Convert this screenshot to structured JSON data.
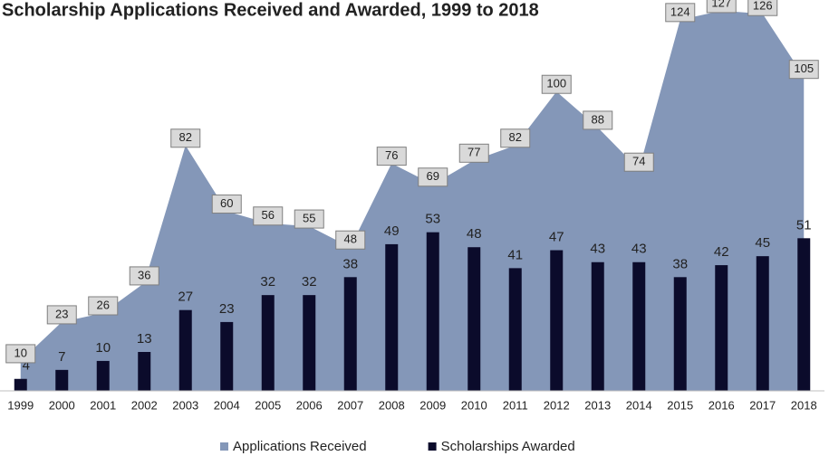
{
  "chart_data": {
    "type": "combo",
    "title": "Scholarship Applications Received and Awarded, 1999 to 2018",
    "categories": [
      "1999",
      "2000",
      "2001",
      "2002",
      "2003",
      "2004",
      "2005",
      "2006",
      "2007",
      "2008",
      "2009",
      "2010",
      "2011",
      "2012",
      "2013",
      "2014",
      "2015",
      "2016",
      "2017",
      "2018"
    ],
    "series": [
      {
        "name": "Applications Received",
        "type": "area",
        "color": "#8497b8",
        "values": [
          10,
          23,
          26,
          36,
          82,
          60,
          56,
          55,
          48,
          76,
          69,
          77,
          82,
          100,
          88,
          74,
          124,
          127,
          126,
          105
        ]
      },
      {
        "name": "Scholarships Awarded",
        "type": "bar",
        "color": "#0b0b2b",
        "values": [
          4,
          7,
          10,
          13,
          27,
          23,
          32,
          32,
          38,
          49,
          53,
          48,
          41,
          47,
          43,
          43,
          38,
          42,
          45,
          51
        ]
      }
    ],
    "ylim": [
      0,
      130
    ],
    "legend": "bottom"
  }
}
